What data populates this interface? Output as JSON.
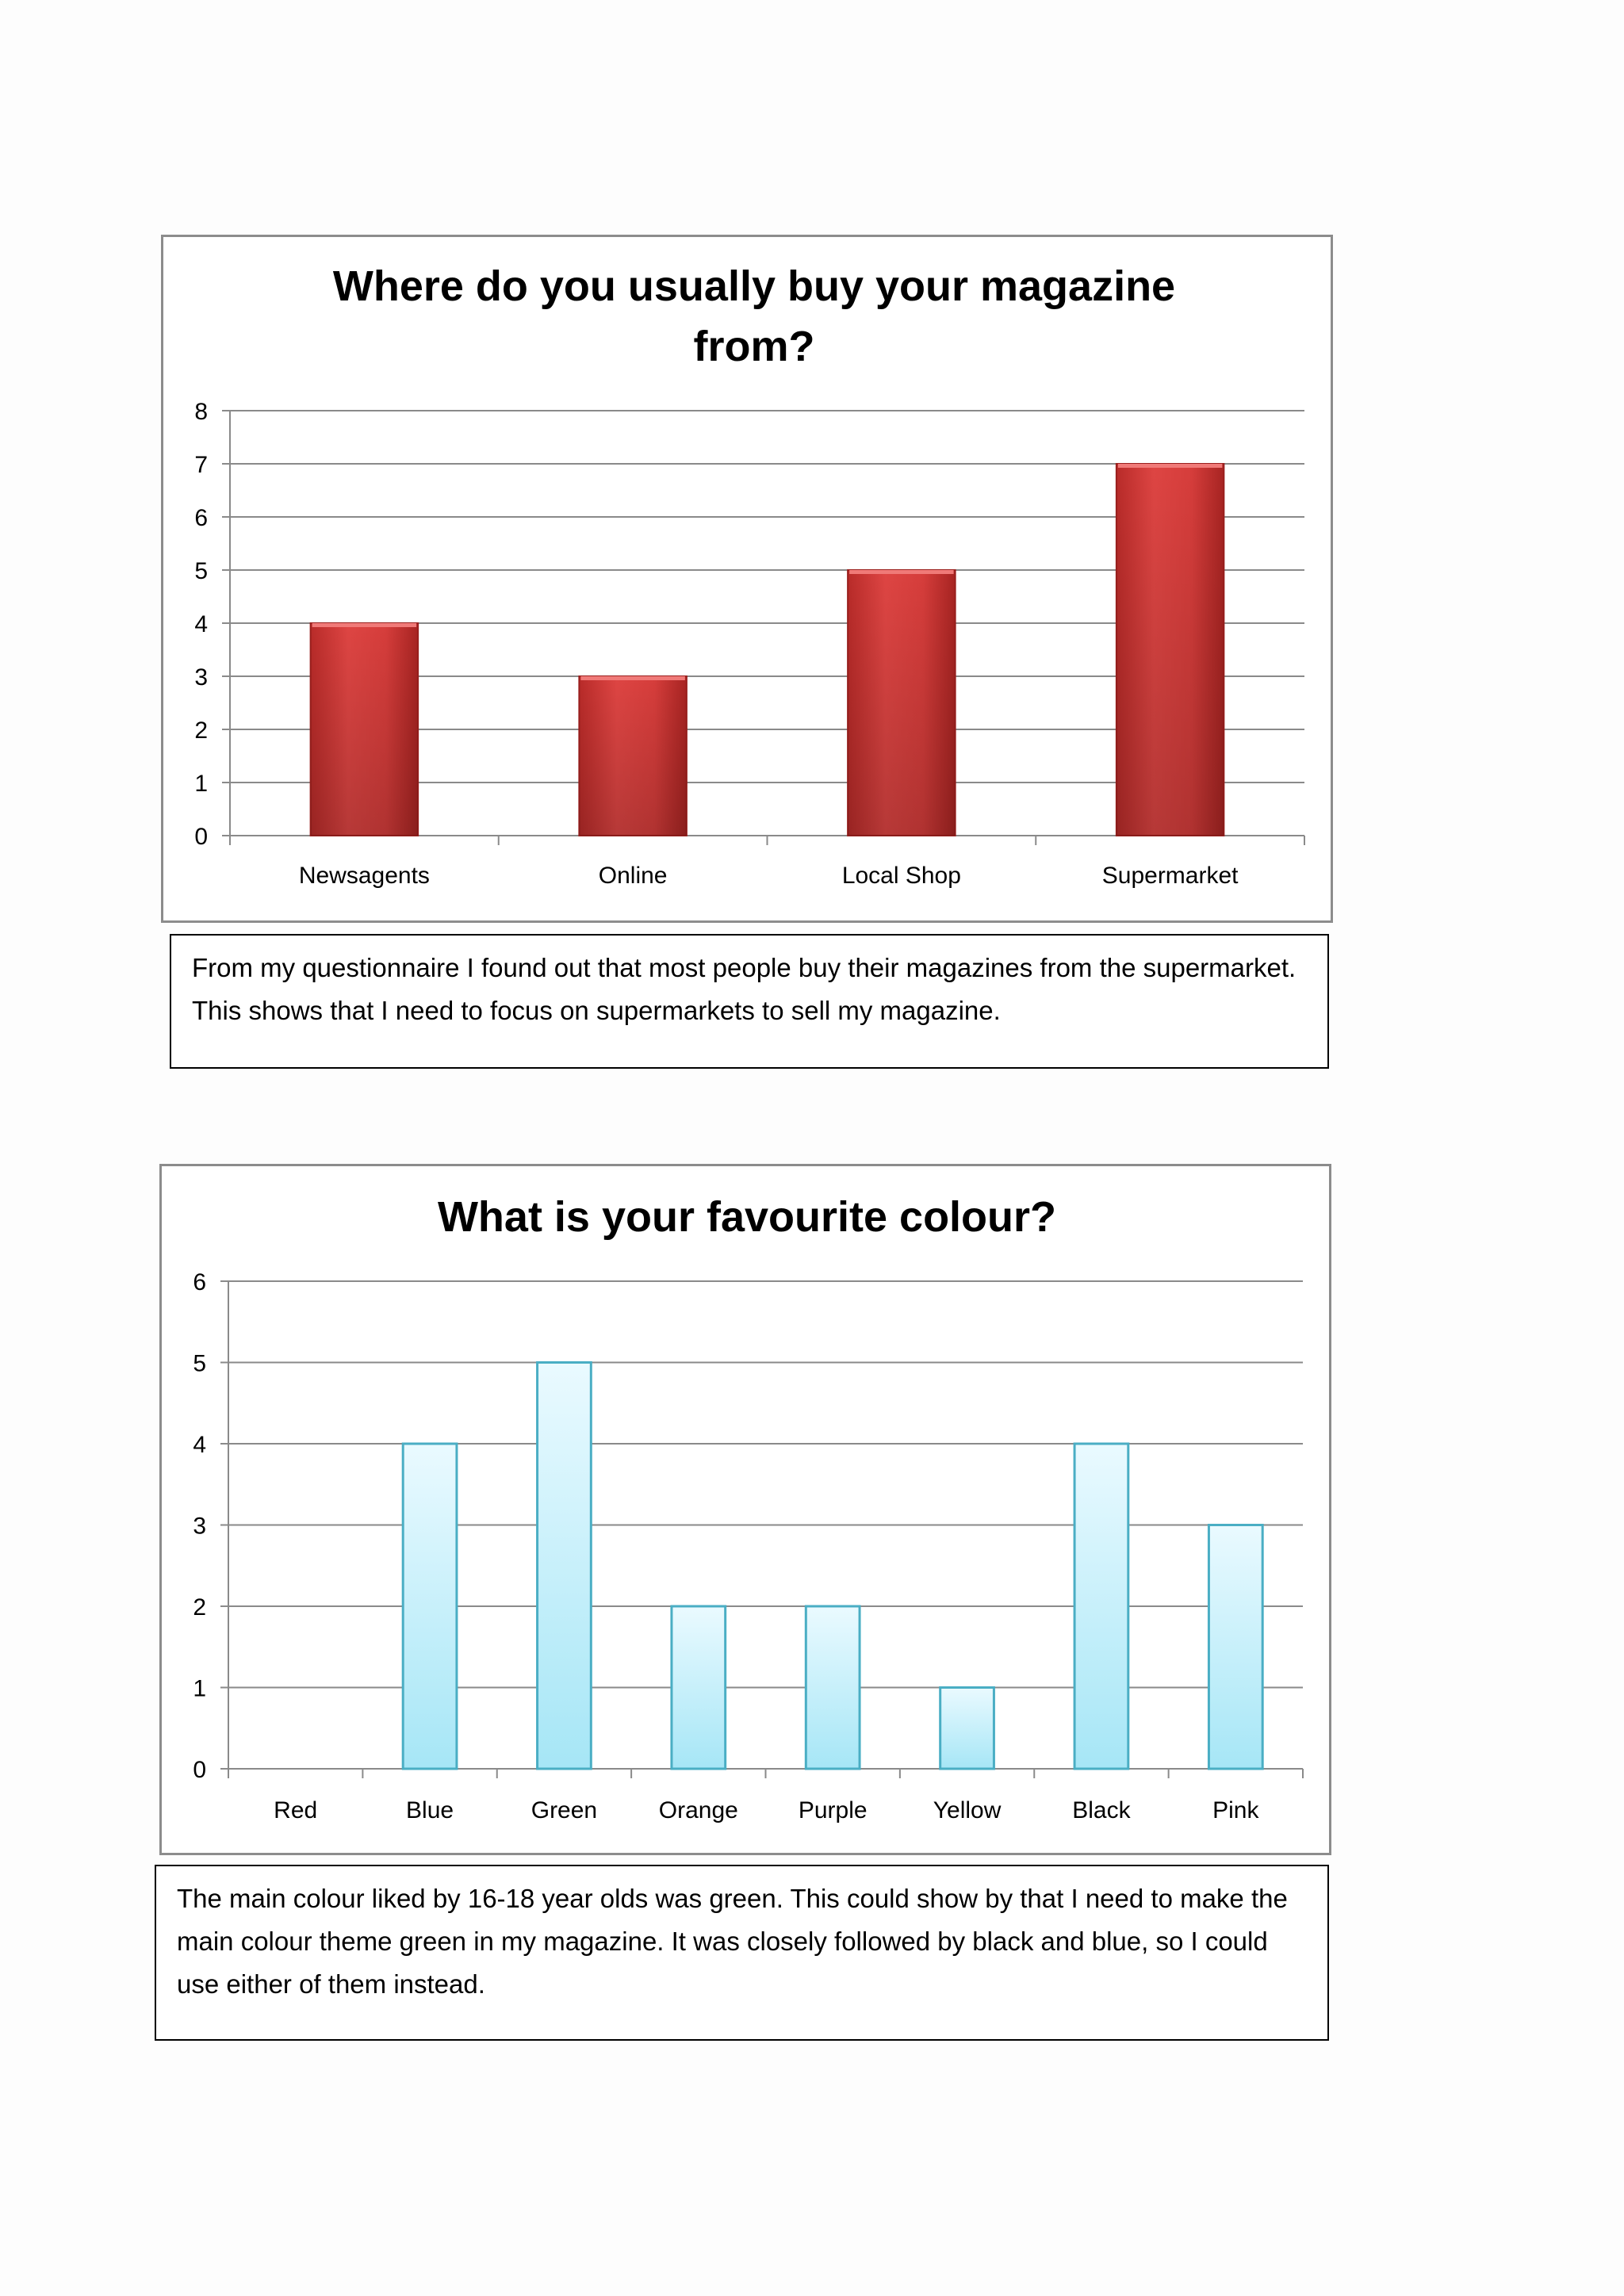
{
  "chart_data": [
    {
      "type": "bar",
      "title": "Where do you usually buy your magazine from?",
      "title_lines": [
        "Where do you usually buy your magazine",
        "from?"
      ],
      "categories": [
        "Newsagents",
        "Online",
        "Local Shop",
        "Supermarket"
      ],
      "values": [
        4,
        3,
        5,
        7
      ],
      "ylim": [
        0,
        8
      ],
      "yticks": [
        "0",
        "1",
        "2",
        "3",
        "4",
        "5",
        "6",
        "7",
        "8"
      ],
      "grid": true,
      "legend": "none",
      "bar_color": "#d23c3a"
    },
    {
      "type": "bar",
      "title": "What is your favourite colour?",
      "title_lines": [
        "What is your favourite colour?"
      ],
      "categories": [
        "Red",
        "Blue",
        "Green",
        "Orange",
        "Purple",
        "Yellow",
        "Black",
        "Pink"
      ],
      "values": [
        0,
        4,
        5,
        2,
        2,
        1,
        4,
        3
      ],
      "ylim": [
        0,
        6
      ],
      "yticks": [
        "0",
        "1",
        "2",
        "3",
        "4",
        "5",
        "6"
      ],
      "grid": true,
      "legend": "none",
      "bar_color": "#bfeefa",
      "bar_border": "#4aaec4"
    }
  ],
  "notes": {
    "note1": "From my questionnaire I found out that most people buy their magazines from the supermarket. This shows that I need to focus on supermarkets to sell my magazine.",
    "note2": "The main colour liked by 16-18 year olds was green. This could show by that I need to make the main colour theme green in my magazine. It was closely followed by black and blue, so I could use either of them instead."
  }
}
